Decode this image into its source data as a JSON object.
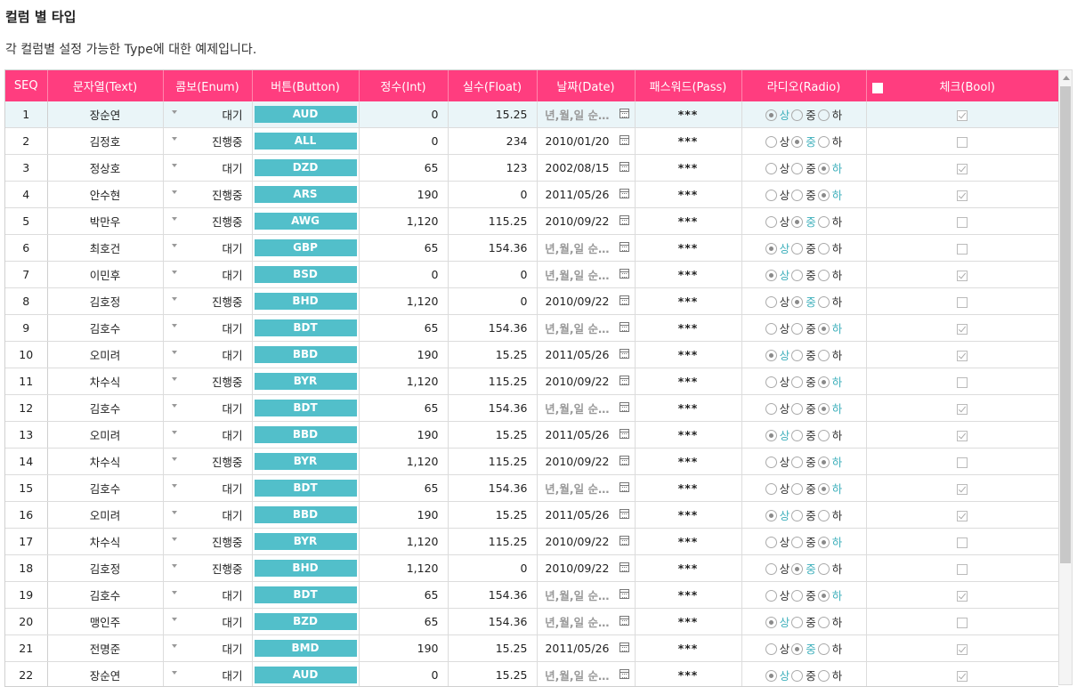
{
  "page": {
    "title": "컬럼 별 타입",
    "subtitle": "각 컬럼별 설정 가능한 Type에 대한 예제입니다."
  },
  "columns": [
    "SEQ",
    "문자열(Text)",
    "콤보(Enum)",
    "버튼(Button)",
    "정수(Int)",
    "실수(Float)",
    "날짜(Date)",
    "패스워드(Pass)",
    "라디오(Radio)",
    "체크(Bool)"
  ],
  "radio_options": [
    "상",
    "중",
    "하"
  ],
  "date_placeholder": "년,월,일 순…",
  "password_mask": "***",
  "colors": {
    "header": "#ff3d7f",
    "button": "#52bfca",
    "accent": "#3fb0bc"
  },
  "selected_row": 0,
  "rows": [
    {
      "seq": "1",
      "text": "장순연",
      "enum": "대기",
      "button": "AUD",
      "int": "0",
      "float": "15.25",
      "date": "",
      "radio": 0,
      "bool": true
    },
    {
      "seq": "2",
      "text": "김정호",
      "enum": "진행중",
      "button": "ALL",
      "int": "0",
      "float": "234",
      "date": "2010/01/20",
      "radio": 1,
      "bool": false
    },
    {
      "seq": "3",
      "text": "정상호",
      "enum": "대기",
      "button": "DZD",
      "int": "65",
      "float": "123",
      "date": "2002/08/15",
      "radio": 2,
      "bool": true
    },
    {
      "seq": "4",
      "text": "안수현",
      "enum": "진행중",
      "button": "ARS",
      "int": "190",
      "float": "0",
      "date": "2011/05/26",
      "radio": 2,
      "bool": true
    },
    {
      "seq": "5",
      "text": "박만우",
      "enum": "진행중",
      "button": "AWG",
      "int": "1,120",
      "float": "115.25",
      "date": "2010/09/22",
      "radio": 1,
      "bool": false
    },
    {
      "seq": "6",
      "text": "최호건",
      "enum": "대기",
      "button": "GBP",
      "int": "65",
      "float": "154.36",
      "date": "",
      "radio": 0,
      "bool": false
    },
    {
      "seq": "7",
      "text": "이민후",
      "enum": "대기",
      "button": "BSD",
      "int": "0",
      "float": "0",
      "date": "",
      "radio": 0,
      "bool": true
    },
    {
      "seq": "8",
      "text": "김호정",
      "enum": "진행중",
      "button": "BHD",
      "int": "1,120",
      "float": "0",
      "date": "2010/09/22",
      "radio": 1,
      "bool": false
    },
    {
      "seq": "9",
      "text": "김호수",
      "enum": "대기",
      "button": "BDT",
      "int": "65",
      "float": "154.36",
      "date": "",
      "radio": 2,
      "bool": true
    },
    {
      "seq": "10",
      "text": "오미려",
      "enum": "대기",
      "button": "BBD",
      "int": "190",
      "float": "15.25",
      "date": "2011/05/26",
      "radio": 0,
      "bool": true
    },
    {
      "seq": "11",
      "text": "차수식",
      "enum": "진행중",
      "button": "BYR",
      "int": "1,120",
      "float": "115.25",
      "date": "2010/09/22",
      "radio": 2,
      "bool": false
    },
    {
      "seq": "12",
      "text": "김호수",
      "enum": "대기",
      "button": "BDT",
      "int": "65",
      "float": "154.36",
      "date": "",
      "radio": 2,
      "bool": true
    },
    {
      "seq": "13",
      "text": "오미려",
      "enum": "대기",
      "button": "BBD",
      "int": "190",
      "float": "15.25",
      "date": "2011/05/26",
      "radio": 0,
      "bool": true
    },
    {
      "seq": "14",
      "text": "차수식",
      "enum": "진행중",
      "button": "BYR",
      "int": "1,120",
      "float": "115.25",
      "date": "2010/09/22",
      "radio": 2,
      "bool": false
    },
    {
      "seq": "15",
      "text": "김호수",
      "enum": "대기",
      "button": "BDT",
      "int": "65",
      "float": "154.36",
      "date": "",
      "radio": 2,
      "bool": true
    },
    {
      "seq": "16",
      "text": "오미려",
      "enum": "대기",
      "button": "BBD",
      "int": "190",
      "float": "15.25",
      "date": "2011/05/26",
      "radio": 0,
      "bool": true
    },
    {
      "seq": "17",
      "text": "차수식",
      "enum": "진행중",
      "button": "BYR",
      "int": "1,120",
      "float": "115.25",
      "date": "2010/09/22",
      "radio": 2,
      "bool": false
    },
    {
      "seq": "18",
      "text": "김호정",
      "enum": "진행중",
      "button": "BHD",
      "int": "1,120",
      "float": "0",
      "date": "2010/09/22",
      "radio": 1,
      "bool": false
    },
    {
      "seq": "19",
      "text": "김호수",
      "enum": "대기",
      "button": "BDT",
      "int": "65",
      "float": "154.36",
      "date": "",
      "radio": 2,
      "bool": true
    },
    {
      "seq": "20",
      "text": "맹인주",
      "enum": "대기",
      "button": "BZD",
      "int": "65",
      "float": "154.36",
      "date": "",
      "radio": 0,
      "bool": false
    },
    {
      "seq": "21",
      "text": "전명준",
      "enum": "대기",
      "button": "BMD",
      "int": "190",
      "float": "15.25",
      "date": "2011/05/26",
      "radio": 1,
      "bool": true
    },
    {
      "seq": "22",
      "text": "장순연",
      "enum": "대기",
      "button": "AUD",
      "int": "0",
      "float": "15.25",
      "date": "",
      "radio": 0,
      "bool": true
    }
  ]
}
